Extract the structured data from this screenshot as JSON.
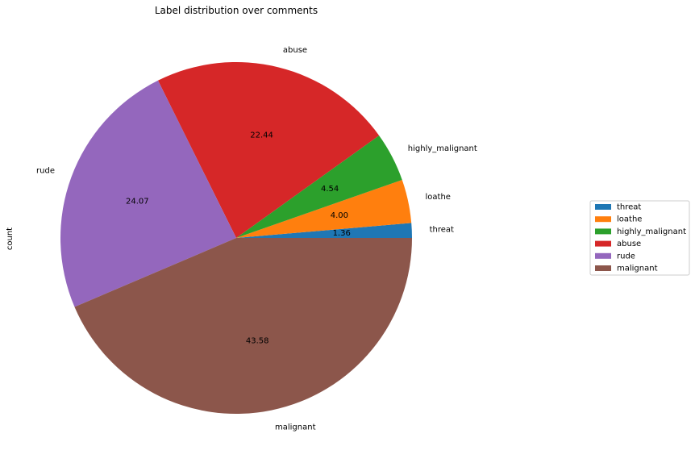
{
  "chart_data": {
    "type": "pie",
    "title": "Label distribution over comments",
    "ylabel": "count",
    "categories": [
      "threat",
      "loathe",
      "highly_malignant",
      "abuse",
      "rude",
      "malignant"
    ],
    "values": [
      1.36,
      4.0,
      4.54,
      22.44,
      24.07,
      43.58
    ],
    "percent_labels": [
      "1.36",
      "4.00",
      "4.54",
      "22.44",
      "24.07",
      "43.58"
    ],
    "colors": [
      "#1f77b4",
      "#ff7f0e",
      "#2ca02c",
      "#d62728",
      "#9467bd",
      "#8c564b"
    ],
    "start_angle": 0,
    "direction": "counterclockwise",
    "legend": {
      "position": "right",
      "entries": [
        "threat",
        "loathe",
        "highly_malignant",
        "abuse",
        "rude",
        "malignant"
      ]
    }
  }
}
